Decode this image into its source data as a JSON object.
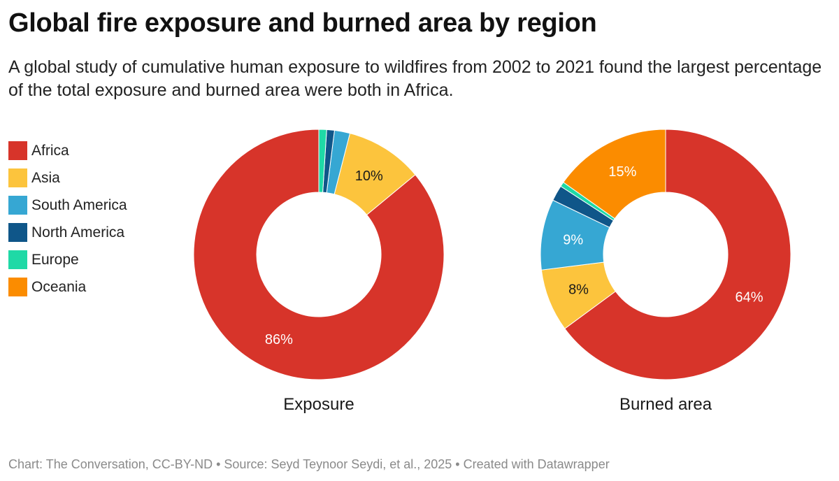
{
  "title": "Global fire exposure and burned area by region",
  "subtitle": "A global study of cumulative human exposure to wildfires from 2002 to 2021 found the largest percentage of the total exposure and burned area were both in Africa.",
  "legend": [
    {
      "label": "Africa",
      "color": "#d7342a"
    },
    {
      "label": "Asia",
      "color": "#fcc43d"
    },
    {
      "label": "South America",
      "color": "#36a7d3"
    },
    {
      "label": "North America",
      "color": "#0f5689"
    },
    {
      "label": "Europe",
      "color": "#1fd9a6"
    },
    {
      "label": "Oceania",
      "color": "#fb8c00"
    }
  ],
  "chart_data": [
    {
      "type": "pie",
      "subtype": "donut",
      "title": "Exposure",
      "categories": [
        "Africa",
        "Asia",
        "South America",
        "North America",
        "Europe",
        "Oceania"
      ],
      "values": [
        86,
        10,
        2,
        1,
        1,
        0
      ],
      "data_labels": [
        "86%",
        "10%",
        "",
        "",
        "",
        ""
      ],
      "label_colors": [
        "#ffffff",
        "#1a1a1a",
        "",
        "",
        "",
        ""
      ]
    },
    {
      "type": "pie",
      "subtype": "donut",
      "title": "Burned area",
      "categories": [
        "Africa",
        "Asia",
        "South America",
        "North America",
        "Europe",
        "Oceania"
      ],
      "values": [
        64,
        8,
        9,
        2,
        0.6,
        15
      ],
      "data_labels": [
        "64%",
        "8%",
        "9%",
        "",
        "",
        "15%"
      ],
      "label_colors": [
        "#ffffff",
        "#1a1a1a",
        "#ffffff",
        "",
        "",
        "#ffffff"
      ]
    }
  ],
  "footer": "Chart: The Conversation, CC-BY-ND • Source: Seyd Teynoor Seydi, et al., 2025 • Created with Datawrapper"
}
